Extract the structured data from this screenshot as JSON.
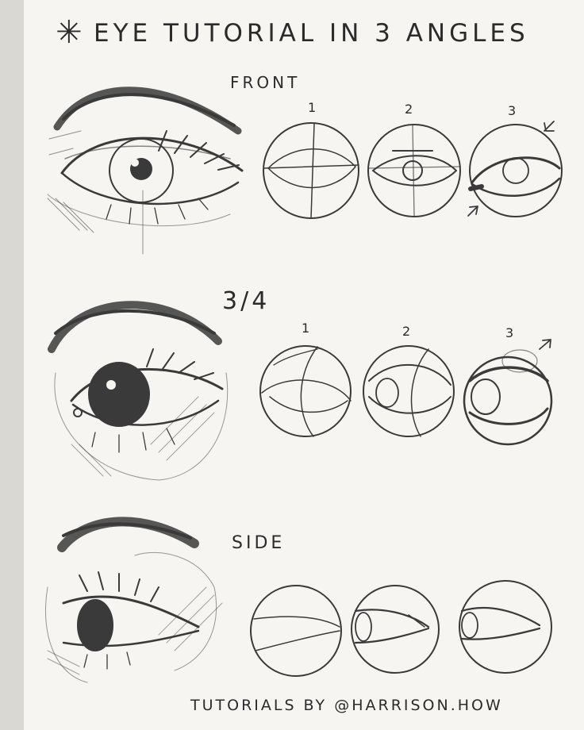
{
  "title": "EYE TUTORIAL IN 3 ANGLES",
  "title_mark": "✳",
  "sections": {
    "front": {
      "label": "FRONT",
      "steps": [
        "1",
        "2",
        "3"
      ]
    },
    "three_quarter": {
      "label": "3/4",
      "steps": [
        "1",
        "2",
        "3"
      ]
    },
    "side": {
      "label": "SIDE"
    }
  },
  "credit": "TUTORIALS BY @HARRISON.HOW",
  "colors": {
    "paper": "#f6f5f1",
    "pencil": "#3a3a3a",
    "shadow": "#d9d8d3"
  }
}
